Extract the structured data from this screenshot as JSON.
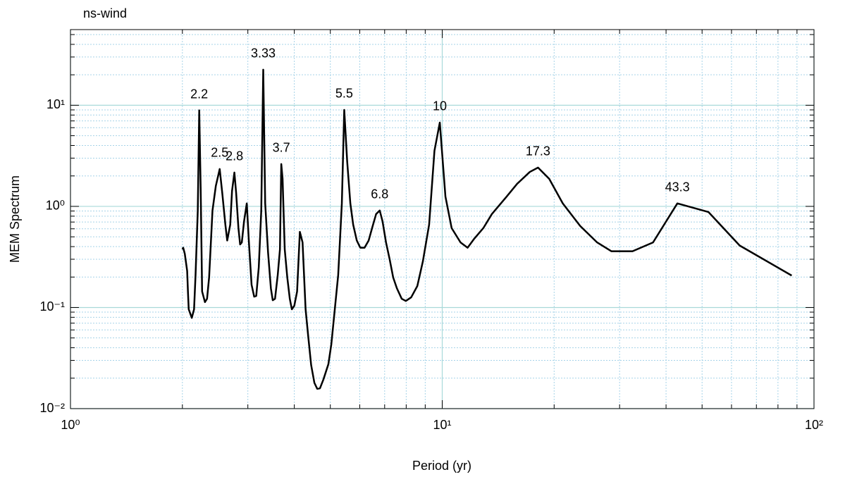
{
  "chart_data": {
    "type": "line",
    "title": "ns-wind",
    "x_label": "Period (yr)",
    "y_label": "MEM Spectrum",
    "log_x": true,
    "log_y": true,
    "grid": true,
    "xlim": [
      1,
      100
    ],
    "ylim": [
      0.01,
      56
    ],
    "xticks": [
      {
        "value": 1,
        "label": "10⁰"
      },
      {
        "value": 10,
        "label": "10¹"
      },
      {
        "value": 100,
        "label": "10²"
      }
    ],
    "yticks": [
      {
        "value": 0.01,
        "label": "10⁻²"
      },
      {
        "value": 0.1,
        "label": "10⁻¹"
      },
      {
        "value": 1,
        "label": "10⁰"
      },
      {
        "value": 10,
        "label": "10¹"
      }
    ],
    "series": [
      {
        "name": "ns-wind",
        "color": "#000000",
        "x": [
          2.0,
          2.01,
          2.03,
          2.06,
          2.07,
          2.08,
          2.12,
          2.15,
          2.17,
          2.2,
          2.22,
          2.24,
          2.26,
          2.3,
          2.33,
          2.36,
          2.41,
          2.46,
          2.52,
          2.56,
          2.61,
          2.64,
          2.69,
          2.72,
          2.76,
          2.79,
          2.83,
          2.86,
          2.89,
          2.93,
          2.98,
          3.02,
          3.07,
          3.12,
          3.16,
          3.21,
          3.26,
          3.3,
          3.34,
          3.4,
          3.46,
          3.5,
          3.55,
          3.61,
          3.66,
          3.69,
          3.72,
          3.77,
          3.83,
          3.89,
          3.94,
          4.0,
          4.07,
          4.14,
          4.21,
          4.29,
          4.36,
          4.44,
          4.53,
          4.61,
          4.69,
          4.79,
          4.94,
          5.03,
          5.13,
          5.25,
          5.37,
          5.45,
          5.55,
          5.66,
          5.76,
          5.89,
          6.02,
          6.18,
          6.34,
          6.5,
          6.64,
          6.79,
          6.91,
          7.06,
          7.22,
          7.38,
          7.55,
          7.78,
          7.98,
          8.25,
          8.57,
          8.87,
          9.22,
          9.53,
          9.85,
          10.2,
          10.6,
          11.2,
          11.7,
          12.2,
          12.9,
          13.6,
          14.9,
          15.9,
          17.2,
          18.1,
          19.4,
          21.1,
          23.5,
          26.1,
          28.5,
          32.5,
          36.9,
          42.9,
          52.0,
          63.1,
          87.1
        ],
        "values": [
          0.376,
          0.39,
          0.34,
          0.23,
          0.144,
          0.096,
          0.079,
          0.096,
          0.21,
          0.91,
          8.9,
          1.47,
          0.144,
          0.113,
          0.122,
          0.198,
          0.91,
          1.59,
          2.34,
          1.36,
          0.66,
          0.46,
          0.66,
          1.42,
          2.16,
          1.36,
          0.61,
          0.42,
          0.44,
          0.71,
          1.07,
          0.44,
          0.168,
          0.128,
          0.13,
          0.25,
          0.91,
          22.5,
          1.07,
          0.35,
          0.155,
          0.118,
          0.122,
          0.21,
          0.376,
          2.62,
          1.87,
          0.376,
          0.198,
          0.122,
          0.096,
          0.104,
          0.144,
          0.56,
          0.44,
          0.096,
          0.052,
          0.027,
          0.018,
          0.0157,
          0.0159,
          0.0194,
          0.0275,
          0.043,
          0.089,
          0.21,
          1.07,
          9.0,
          2.79,
          1.07,
          0.66,
          0.46,
          0.39,
          0.39,
          0.46,
          0.64,
          0.84,
          0.91,
          0.71,
          0.44,
          0.3,
          0.198,
          0.155,
          0.122,
          0.116,
          0.126,
          0.163,
          0.286,
          0.66,
          3.55,
          6.74,
          1.25,
          0.61,
          0.44,
          0.39,
          0.48,
          0.61,
          0.84,
          1.25,
          1.67,
          2.19,
          2.42,
          1.87,
          1.07,
          0.64,
          0.44,
          0.36,
          0.36,
          0.44,
          1.07,
          0.88,
          0.41,
          0.207
        ]
      }
    ],
    "annotations": [
      {
        "text": "2.2",
        "x": 2.22,
        "y": 8.9
      },
      {
        "text": "2.5",
        "x": 2.52,
        "y": 2.34
      },
      {
        "text": "2.8",
        "x": 2.76,
        "y": 2.16
      },
      {
        "text": "3.33",
        "x": 3.3,
        "y": 22.5
      },
      {
        "text": "3.7",
        "x": 3.69,
        "y": 2.62
      },
      {
        "text": "5.5",
        "x": 5.45,
        "y": 9.0
      },
      {
        "text": "6.8",
        "x": 6.79,
        "y": 0.91
      },
      {
        "text": "10",
        "x": 9.85,
        "y": 6.74
      },
      {
        "text": "17.3",
        "x": 18.1,
        "y": 2.42
      },
      {
        "text": "43.3",
        "x": 42.9,
        "y": 1.07
      }
    ]
  }
}
